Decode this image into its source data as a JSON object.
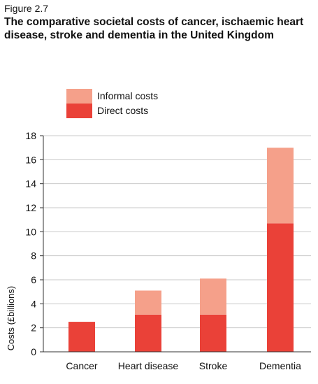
{
  "figure": {
    "label": "Figure 2.7",
    "title": "The comparative societal costs of cancer, ischaemic heart disease, stroke and dementia in the United Kingdom"
  },
  "colors": {
    "informal": "#f5a08a",
    "direct": "#ea4138",
    "grid": "#c8c8c8",
    "axis": "#333333"
  },
  "chart_data": {
    "type": "bar",
    "stacked": true,
    "categories": [
      "Cancer",
      "Heart disease",
      "Stroke",
      "Dementia"
    ],
    "series": [
      {
        "name": "Direct costs",
        "values": [
          2.5,
          3.1,
          3.1,
          10.7
        ]
      },
      {
        "name": "Informal costs",
        "values": [
          0,
          2.0,
          3.0,
          6.3
        ]
      }
    ],
    "ylabel": "Costs (£billions)",
    "xlabel": "",
    "ylim": [
      0,
      18
    ],
    "yticks": [
      0,
      2,
      4,
      6,
      8,
      10,
      12,
      14,
      16,
      18
    ],
    "grid": true,
    "legend": [
      "Informal costs",
      "Direct costs"
    ],
    "legend_position": "top-left"
  }
}
